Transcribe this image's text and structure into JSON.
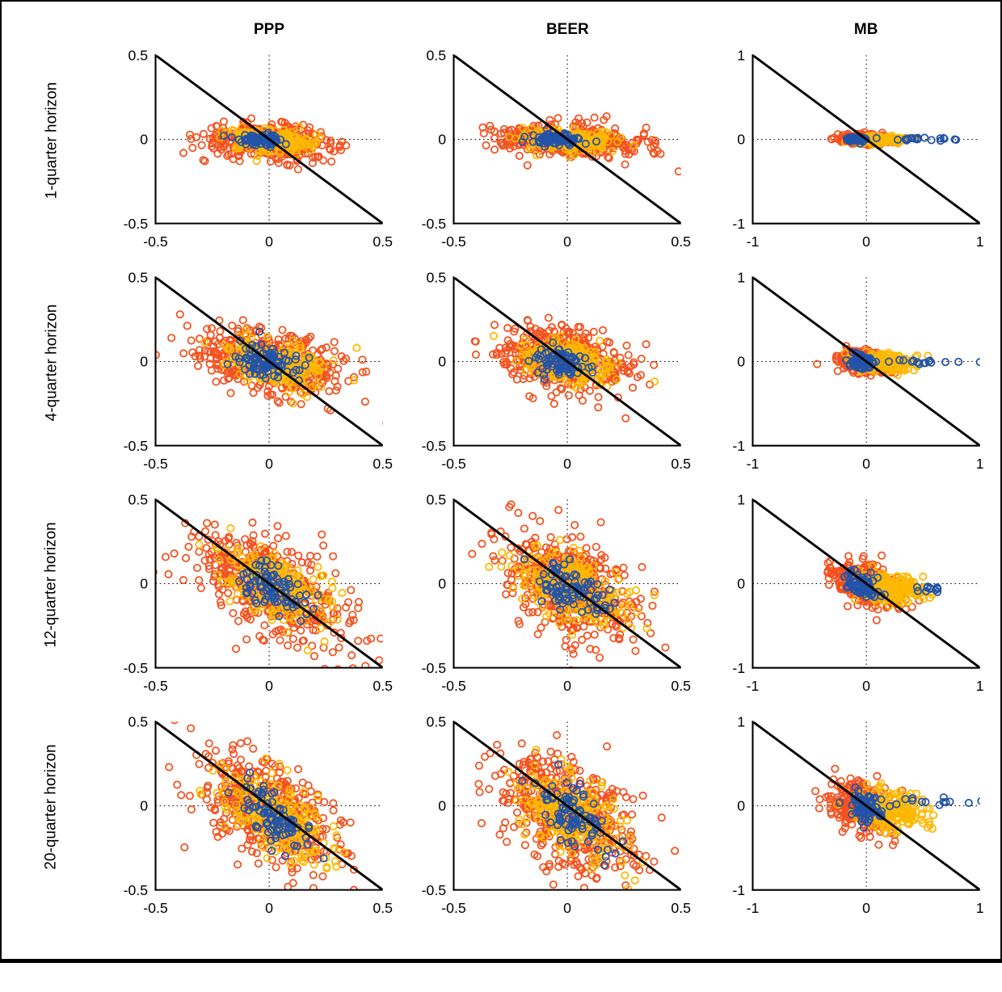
{
  "figure": {
    "background": "#ffffff",
    "frame_color": "#000000",
    "column_titles": [
      "PPP",
      "BEER",
      "MB"
    ],
    "row_labels": [
      "1-quarter horizon",
      "4-quarter horizon",
      "12-quarter horizon",
      "20-quarter horizon"
    ]
  },
  "colors": {
    "orange": "#F4511E",
    "yellow": "#FFB800",
    "blue": "#2353A8",
    "axis": "#000000",
    "dotted": "#000000",
    "diagonal": "#000000"
  },
  "chart_data": [
    {
      "type": "scatter",
      "column": "PPP",
      "row": "1-quarter horizon",
      "xlim": [
        -0.5,
        0.5
      ],
      "ylim": [
        -0.5,
        0.5
      ],
      "xticks": [
        -0.5,
        0,
        0.5
      ],
      "xtick_labels": [
        "-0.5",
        "0",
        "0.5"
      ],
      "yticks": [
        0.5,
        0,
        -0.5
      ],
      "ytick_labels": [
        "0.5",
        "0",
        "-0.5"
      ],
      "zero_lines": true,
      "grid": false,
      "legend": false,
      "diagonal": {
        "x1": -0.5,
        "y1": 0.5,
        "x2": 0.5,
        "y2": -0.5
      },
      "series": [
        {
          "name": "orange",
          "color": "orange",
          "n": 380,
          "center": [
            0.0,
            -0.015
          ],
          "sd": [
            0.145,
            0.05
          ],
          "corr": -0.25
        },
        {
          "name": "yellow",
          "color": "yellow",
          "n": 200,
          "center": [
            0.02,
            -0.01
          ],
          "sd": [
            0.095,
            0.032
          ],
          "corr": -0.2
        },
        {
          "name": "blue",
          "color": "blue",
          "n": 80,
          "center": [
            -0.04,
            0.0
          ],
          "sd": [
            0.055,
            0.018
          ],
          "corr": -0.2
        }
      ]
    },
    {
      "type": "scatter",
      "column": "BEER",
      "row": "1-quarter horizon",
      "xlim": [
        -0.5,
        0.5
      ],
      "ylim": [
        -0.5,
        0.5
      ],
      "xticks": [
        -0.5,
        0,
        0.5
      ],
      "xtick_labels": [
        "-0.5",
        "0",
        "0.5"
      ],
      "yticks": [
        0.5,
        0,
        -0.5
      ],
      "ytick_labels": [
        "0.5",
        "0",
        "-0.5"
      ],
      "zero_lines": true,
      "grid": false,
      "legend": false,
      "diagonal": {
        "x1": -0.5,
        "y1": 0.5,
        "x2": 0.5,
        "y2": -0.5
      },
      "series": [
        {
          "name": "orange",
          "color": "orange",
          "n": 380,
          "center": [
            0.0,
            -0.01
          ],
          "sd": [
            0.155,
            0.05
          ],
          "corr": -0.2
        },
        {
          "name": "yellow",
          "color": "yellow",
          "n": 200,
          "center": [
            0.0,
            -0.005
          ],
          "sd": [
            0.1,
            0.03
          ],
          "corr": -0.15
        },
        {
          "name": "blue",
          "color": "blue",
          "n": 80,
          "center": [
            -0.05,
            0.0
          ],
          "sd": [
            0.06,
            0.02
          ],
          "corr": -0.15
        }
      ]
    },
    {
      "type": "scatter",
      "column": "MB",
      "row": "1-quarter horizon",
      "xlim": [
        -1,
        1
      ],
      "ylim": [
        -1,
        1
      ],
      "xticks": [
        -1,
        0,
        1
      ],
      "xtick_labels": [
        "-1",
        "0",
        "1"
      ],
      "yticks": [
        1,
        0,
        -1
      ],
      "ytick_labels": [
        "1",
        "0",
        "-1"
      ],
      "zero_lines": true,
      "grid": false,
      "legend": false,
      "diagonal": {
        "x1": -1,
        "y1": 1,
        "x2": 1,
        "y2": -1
      },
      "series": [
        {
          "name": "orange",
          "color": "orange",
          "n": 320,
          "center": [
            -0.02,
            0.0
          ],
          "sd": [
            0.1,
            0.028
          ],
          "corr": -0.1
        },
        {
          "name": "yellow",
          "color": "yellow",
          "n": 170,
          "center": [
            0.13,
            -0.005
          ],
          "sd": [
            0.13,
            0.02
          ],
          "corr": 0
        },
        {
          "name": "blue",
          "color": "blue",
          "n": 60,
          "center": [
            -0.1,
            0.0
          ],
          "sd": [
            0.05,
            0.018
          ],
          "corr": 0
        },
        {
          "name": "blue-outliers",
          "color": "blue",
          "n": 22,
          "center": [
            0.55,
            0.0
          ],
          "sd": [
            0.27,
            0.015
          ],
          "corr": 0
        }
      ]
    },
    {
      "type": "scatter",
      "column": "PPP",
      "row": "4-quarter horizon",
      "xlim": [
        -0.5,
        0.5
      ],
      "ylim": [
        -0.5,
        0.5
      ],
      "xticks": [
        -0.5,
        0,
        0.5
      ],
      "xtick_labels": [
        "-0.5",
        "0",
        "0.5"
      ],
      "yticks": [
        0.5,
        0,
        -0.5
      ],
      "ytick_labels": [
        "0.5",
        "0",
        "-0.5"
      ],
      "zero_lines": true,
      "grid": false,
      "legend": false,
      "diagonal": {
        "x1": -0.5,
        "y1": 0.5,
        "x2": 0.5,
        "y2": -0.5
      },
      "series": [
        {
          "name": "orange",
          "color": "orange",
          "n": 420,
          "center": [
            0.0,
            0.0
          ],
          "sd": [
            0.16,
            0.1
          ],
          "corr": -0.4
        },
        {
          "name": "yellow",
          "color": "yellow",
          "n": 220,
          "center": [
            0.03,
            -0.01
          ],
          "sd": [
            0.11,
            0.065
          ],
          "corr": -0.35
        },
        {
          "name": "blue",
          "color": "blue",
          "n": 90,
          "center": [
            0.0,
            0.0
          ],
          "sd": [
            0.065,
            0.045
          ],
          "corr": -0.3
        }
      ]
    },
    {
      "type": "scatter",
      "column": "BEER",
      "row": "4-quarter horizon",
      "xlim": [
        -0.5,
        0.5
      ],
      "ylim": [
        -0.5,
        0.5
      ],
      "xticks": [
        -0.5,
        0,
        0.5
      ],
      "xtick_labels": [
        "-0.5",
        "0",
        "0.5"
      ],
      "yticks": [
        0.5,
        0,
        -0.5
      ],
      "ytick_labels": [
        "0.5",
        "0",
        "-0.5"
      ],
      "zero_lines": true,
      "grid": false,
      "legend": false,
      "diagonal": {
        "x1": -0.5,
        "y1": 0.5,
        "x2": 0.5,
        "y2": -0.5
      },
      "series": [
        {
          "name": "orange",
          "color": "orange",
          "n": 420,
          "center": [
            0.0,
            0.005
          ],
          "sd": [
            0.15,
            0.095
          ],
          "corr": -0.35
        },
        {
          "name": "yellow",
          "color": "yellow",
          "n": 220,
          "center": [
            0.0,
            0.0
          ],
          "sd": [
            0.1,
            0.06
          ],
          "corr": -0.3
        },
        {
          "name": "blue",
          "color": "blue",
          "n": 90,
          "center": [
            -0.02,
            0.0
          ],
          "sd": [
            0.06,
            0.04
          ],
          "corr": -0.3
        }
      ]
    },
    {
      "type": "scatter",
      "column": "MB",
      "row": "4-quarter horizon",
      "xlim": [
        -1,
        1
      ],
      "ylim": [
        -1,
        1
      ],
      "xticks": [
        -1,
        0,
        1
      ],
      "xtick_labels": [
        "-1",
        "0",
        "1"
      ],
      "yticks": [
        1,
        0,
        -1
      ],
      "ytick_labels": [
        "1",
        "0",
        "-1"
      ],
      "zero_lines": true,
      "grid": false,
      "legend": false,
      "diagonal": {
        "x1": -1,
        "y1": 1,
        "x2": 1,
        "y2": -1
      },
      "series": [
        {
          "name": "orange",
          "color": "orange",
          "n": 330,
          "center": [
            -0.02,
            0.0
          ],
          "sd": [
            0.11,
            0.06
          ],
          "corr": -0.2
        },
        {
          "name": "yellow",
          "color": "yellow",
          "n": 180,
          "center": [
            0.17,
            -0.02
          ],
          "sd": [
            0.13,
            0.05
          ],
          "corr": -0.1
        },
        {
          "name": "blue",
          "color": "blue",
          "n": 70,
          "center": [
            -0.05,
            0.0
          ],
          "sd": [
            0.06,
            0.045
          ],
          "corr": -0.2
        },
        {
          "name": "blue-outliers",
          "color": "blue",
          "n": 20,
          "center": [
            0.6,
            0.0
          ],
          "sd": [
            0.22,
            0.02
          ],
          "corr": 0
        }
      ]
    },
    {
      "type": "scatter",
      "column": "PPP",
      "row": "12-quarter horizon",
      "xlim": [
        -0.5,
        0.5
      ],
      "ylim": [
        -0.5,
        0.5
      ],
      "xticks": [
        -0.5,
        0,
        0.5
      ],
      "xtick_labels": [
        "-0.5",
        "0",
        "0.5"
      ],
      "yticks": [
        0.5,
        0,
        -0.5
      ],
      "ytick_labels": [
        "0.5",
        "0",
        "-0.5"
      ],
      "zero_lines": true,
      "grid": false,
      "legend": false,
      "diagonal": {
        "x1": -0.5,
        "y1": 0.5,
        "x2": 0.5,
        "y2": -0.5
      },
      "series": [
        {
          "name": "orange",
          "color": "orange",
          "n": 450,
          "center": [
            0.0,
            -0.02
          ],
          "sd": [
            0.17,
            0.16
          ],
          "corr": -0.5
        },
        {
          "name": "yellow",
          "color": "yellow",
          "n": 230,
          "center": [
            0.02,
            -0.02
          ],
          "sd": [
            0.12,
            0.11
          ],
          "corr": -0.5
        },
        {
          "name": "blue",
          "color": "blue",
          "n": 90,
          "center": [
            0.0,
            -0.03
          ],
          "sd": [
            0.08,
            0.075
          ],
          "corr": -0.45
        }
      ]
    },
    {
      "type": "scatter",
      "column": "BEER",
      "row": "12-quarter horizon",
      "xlim": [
        -0.5,
        0.5
      ],
      "ylim": [
        -0.5,
        0.5
      ],
      "xticks": [
        -0.5,
        0,
        0.5
      ],
      "xtick_labels": [
        "-0.5",
        "0",
        "0.5"
      ],
      "yticks": [
        0.5,
        0,
        -0.5
      ],
      "ytick_labels": [
        "0.5",
        "0",
        "-0.5"
      ],
      "zero_lines": true,
      "grid": false,
      "legend": false,
      "diagonal": {
        "x1": -0.5,
        "y1": 0.5,
        "x2": 0.5,
        "y2": -0.5
      },
      "series": [
        {
          "name": "orange",
          "color": "orange",
          "n": 450,
          "center": [
            0.0,
            -0.02
          ],
          "sd": [
            0.16,
            0.16
          ],
          "corr": -0.45
        },
        {
          "name": "yellow",
          "color": "yellow",
          "n": 230,
          "center": [
            0.02,
            -0.02
          ],
          "sd": [
            0.11,
            0.11
          ],
          "corr": -0.45
        },
        {
          "name": "blue",
          "color": "blue",
          "n": 90,
          "center": [
            0.02,
            -0.03
          ],
          "sd": [
            0.08,
            0.08
          ],
          "corr": -0.4
        }
      ]
    },
    {
      "type": "scatter",
      "column": "MB",
      "row": "12-quarter horizon",
      "xlim": [
        -1,
        1
      ],
      "ylim": [
        -1,
        1
      ],
      "xticks": [
        -1,
        0,
        1
      ],
      "xtick_labels": [
        "-1",
        "0",
        "1"
      ],
      "yticks": [
        1,
        0,
        -1
      ],
      "ytick_labels": [
        "1",
        "0",
        "-1"
      ],
      "zero_lines": true,
      "grid": false,
      "legend": false,
      "diagonal": {
        "x1": -1,
        "y1": 1,
        "x2": 1,
        "y2": -1
      },
      "series": [
        {
          "name": "orange",
          "color": "orange",
          "n": 360,
          "center": [
            0.0,
            -0.02
          ],
          "sd": [
            0.14,
            0.12
          ],
          "corr": -0.35
        },
        {
          "name": "yellow",
          "color": "yellow",
          "n": 200,
          "center": [
            0.2,
            -0.05
          ],
          "sd": [
            0.16,
            0.09
          ],
          "corr": -0.25
        },
        {
          "name": "blue",
          "color": "blue",
          "n": 80,
          "center": [
            -0.03,
            -0.02
          ],
          "sd": [
            0.07,
            0.08
          ],
          "corr": -0.3
        },
        {
          "name": "blue-outliers",
          "color": "blue",
          "n": 12,
          "center": [
            0.62,
            -0.05
          ],
          "sd": [
            0.16,
            0.03
          ],
          "corr": 0
        }
      ]
    },
    {
      "type": "scatter",
      "column": "PPP",
      "row": "20-quarter horizon",
      "xlim": [
        -0.5,
        0.5
      ],
      "ylim": [
        -0.5,
        0.5
      ],
      "xticks": [
        -0.5,
        0,
        0.5
      ],
      "xtick_labels": [
        "-0.5",
        "0",
        "0.5"
      ],
      "yticks": [
        0.5,
        0,
        -0.5
      ],
      "ytick_labels": [
        "0.5",
        "0",
        "-0.5"
      ],
      "zero_lines": true,
      "grid": false,
      "legend": false,
      "diagonal": {
        "x1": -0.5,
        "y1": 0.5,
        "x2": 0.5,
        "y2": -0.5
      },
      "series": [
        {
          "name": "orange",
          "color": "orange",
          "n": 450,
          "center": [
            0.0,
            -0.04
          ],
          "sd": [
            0.155,
            0.18
          ],
          "corr": -0.55
        },
        {
          "name": "yellow",
          "color": "yellow",
          "n": 230,
          "center": [
            0.03,
            -0.06
          ],
          "sd": [
            0.115,
            0.13
          ],
          "corr": -0.55
        },
        {
          "name": "blue",
          "color": "blue",
          "n": 90,
          "center": [
            0.02,
            -0.07
          ],
          "sd": [
            0.075,
            0.1
          ],
          "corr": -0.5
        }
      ]
    },
    {
      "type": "scatter",
      "column": "BEER",
      "row": "20-quarter horizon",
      "xlim": [
        -0.5,
        0.5
      ],
      "ylim": [
        -0.5,
        0.5
      ],
      "xticks": [
        -0.5,
        0,
        0.5
      ],
      "xtick_labels": [
        "-0.5",
        "0",
        "0.5"
      ],
      "yticks": [
        0.5,
        0,
        -0.5
      ],
      "ytick_labels": [
        "0.5",
        "0",
        "-0.5"
      ],
      "zero_lines": true,
      "grid": false,
      "legend": false,
      "diagonal": {
        "x1": -0.5,
        "y1": 0.5,
        "x2": 0.5,
        "y2": -0.5
      },
      "series": [
        {
          "name": "orange",
          "color": "orange",
          "n": 450,
          "center": [
            0.0,
            -0.04
          ],
          "sd": [
            0.15,
            0.18
          ],
          "corr": -0.5
        },
        {
          "name": "yellow",
          "color": "yellow",
          "n": 230,
          "center": [
            0.02,
            -0.05
          ],
          "sd": [
            0.11,
            0.13
          ],
          "corr": -0.5
        },
        {
          "name": "blue",
          "color": "blue",
          "n": 90,
          "center": [
            0.03,
            -0.06
          ],
          "sd": [
            0.075,
            0.1
          ],
          "corr": -0.45
        }
      ]
    },
    {
      "type": "scatter",
      "column": "MB",
      "row": "20-quarter horizon",
      "xlim": [
        -1,
        1
      ],
      "ylim": [
        -1,
        1
      ],
      "xticks": [
        -1,
        0,
        1
      ],
      "xtick_labels": [
        "-1",
        "0",
        "1"
      ],
      "yticks": [
        1,
        0,
        -1
      ],
      "ytick_labels": [
        "1",
        "0",
        "-1"
      ],
      "zero_lines": true,
      "grid": false,
      "legend": false,
      "diagonal": {
        "x1": -1,
        "y1": 1,
        "x2": 1,
        "y2": -1
      },
      "series": [
        {
          "name": "orange",
          "color": "orange",
          "n": 360,
          "center": [
            -0.02,
            -0.02
          ],
          "sd": [
            0.13,
            0.15
          ],
          "corr": -0.35
        },
        {
          "name": "yellow",
          "color": "yellow",
          "n": 200,
          "center": [
            0.23,
            -0.06
          ],
          "sd": [
            0.15,
            0.12
          ],
          "corr": -0.2
        },
        {
          "name": "blue",
          "color": "blue",
          "n": 80,
          "center": [
            0.0,
            -0.03
          ],
          "sd": [
            0.07,
            0.1
          ],
          "corr": -0.3
        },
        {
          "name": "blue-outliers",
          "color": "blue",
          "n": 14,
          "center": [
            0.55,
            0.05
          ],
          "sd": [
            0.2,
            0.035
          ],
          "corr": 0
        }
      ]
    }
  ]
}
